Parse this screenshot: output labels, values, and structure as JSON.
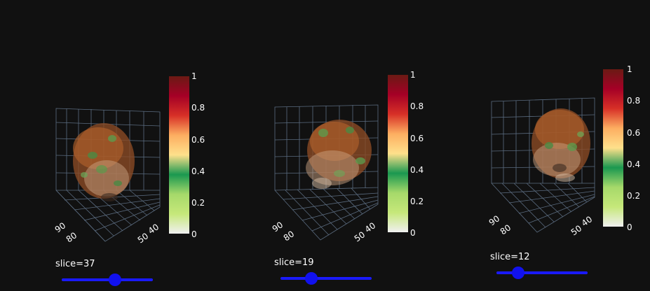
{
  "colorscale": [
    "#f0f0f0",
    "#c6e87a",
    "#a6d96a",
    "#1a9850",
    "#fee08b",
    "#fdae61",
    "#d73027",
    "#a50026",
    "#6b1a14"
  ],
  "panels": [
    {
      "slice_label": "slice=37",
      "slider_value": 37,
      "slider_fraction": 0.6,
      "colorbar_ticks": [
        "1",
        "0.8",
        "0.6",
        "0.4",
        "0.2",
        "0"
      ],
      "axis_ticks": [
        "90",
        "80",
        "40",
        "50"
      ]
    },
    {
      "slice_label": "slice=19",
      "slider_value": 19,
      "slider_fraction": 0.31,
      "colorbar_ticks": [
        "1",
        "0.8",
        "0.6",
        "0.4",
        "0.2",
        "0"
      ],
      "axis_ticks": [
        "90",
        "80",
        "40",
        "50"
      ]
    },
    {
      "slice_label": "slice=12",
      "slider_value": 12,
      "slider_fraction": 0.2,
      "colorbar_ticks": [
        "1",
        "0.8",
        "0.6",
        "0.4",
        "0.2",
        "0"
      ],
      "axis_ticks": [
        "90",
        "80",
        "40",
        "50"
      ]
    }
  ]
}
